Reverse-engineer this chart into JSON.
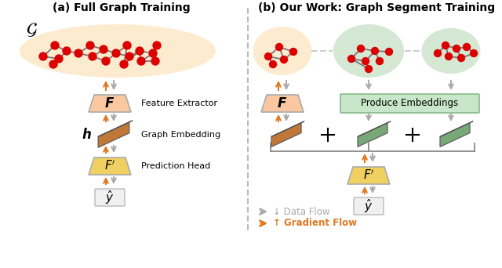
{
  "title_a": "(a) Full Graph Training",
  "title_b": "(b) Our Work: Graph Segment Training",
  "label_feature_extractor": "Feature Extractor",
  "label_graph_embedding": "Graph Embedding",
  "label_prediction_head": "Prediction Head",
  "label_produce_embeddings": "Produce Embeddings",
  "label_data_flow": "↓ Data Flow",
  "label_gradient_flow": "↑ Gradient Flow",
  "bg_color": "#ffffff",
  "orange_color": "#E07820",
  "gray_arrow_color": "#AAAAAA",
  "red_node_color": "#DD0000",
  "edge_color": "#777777",
  "peach_bg": "#FDEBD0",
  "green_bg": "#D5E8D4",
  "F_box_peach": "#F9C8A0",
  "F_box_yellow": "#F0D060",
  "produce_box_color": "#C8E6C9",
  "y_box_color": "#F0F0F0",
  "embedding_orange": "#C07838",
  "embedding_green": "#78A878",
  "divider_color": "#BBBBBB"
}
